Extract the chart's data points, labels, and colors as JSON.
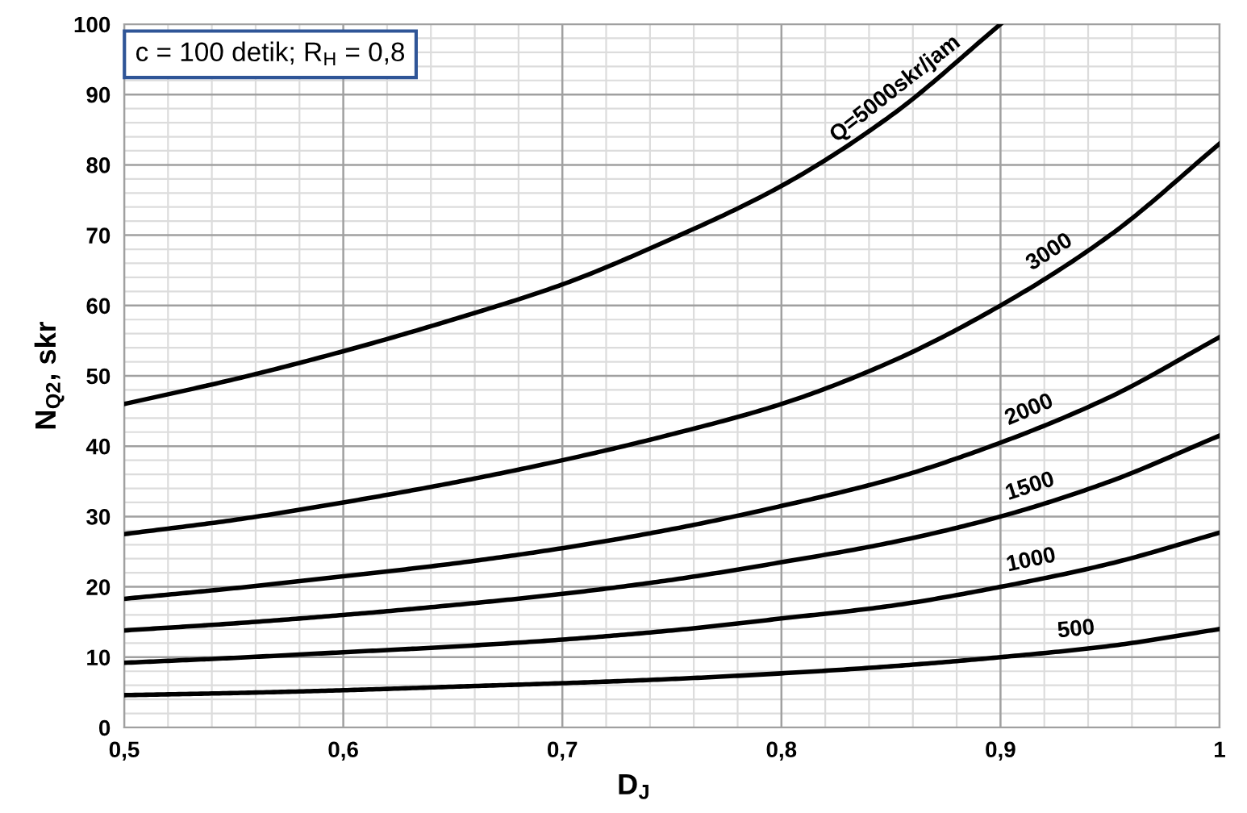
{
  "chart_data": {
    "type": "line",
    "xlabel": "D$_{J}$",
    "ylabel": "N$_{Q2}$, skr",
    "annotations": [
      "c = 100 detik; R$_{H}$ = 0,8"
    ],
    "x": [
      0.5,
      0.55,
      0.6,
      0.65,
      0.7,
      0.75,
      0.8,
      0.85,
      0.9,
      0.95,
      1.0
    ],
    "series": [
      {
        "name": "Q=5000skr/jam",
        "color": "#000000",
        "values": [
          46,
          49.5,
          53.5,
          58,
          63,
          69.5,
          77,
          87,
          100,
          null,
          null
        ]
      },
      {
        "name": "3000",
        "color": "#000000",
        "values": [
          27.5,
          29.5,
          32,
          34.8,
          38,
          41.7,
          46,
          52,
          60,
          70,
          83
        ]
      },
      {
        "name": "2000",
        "color": "#000000",
        "values": [
          18.3,
          19.8,
          21.5,
          23.3,
          25.5,
          28.2,
          31.5,
          35.3,
          40.5,
          47,
          55.5
        ]
      },
      {
        "name": "1500",
        "color": "#000000",
        "values": [
          13.8,
          14.8,
          16,
          17.4,
          19,
          21,
          23.5,
          26.3,
          30,
          35,
          41.5
        ]
      },
      {
        "name": "1000",
        "color": "#000000",
        "values": [
          9.2,
          9.9,
          10.7,
          11.5,
          12.5,
          13.8,
          15.5,
          17.3,
          20,
          23.3,
          27.7
        ]
      },
      {
        "name": "500",
        "color": "#000000",
        "values": [
          4.6,
          4.9,
          5.3,
          5.8,
          6.3,
          6.9,
          7.7,
          8.7,
          10,
          11.6,
          14
        ]
      }
    ],
    "xlim": [
      0.5,
      1.0
    ],
    "ylim": [
      0,
      100
    ],
    "xticks": [
      {
        "value": 0.5,
        "label": "0,5"
      },
      {
        "value": 0.6,
        "label": "0,6"
      },
      {
        "value": 0.7,
        "label": "0,7"
      },
      {
        "value": 0.8,
        "label": "0,8"
      },
      {
        "value": 0.9,
        "label": "0,9"
      },
      {
        "value": 1.0,
        "label": "1"
      }
    ],
    "yticks": [
      0,
      10,
      20,
      30,
      40,
      50,
      60,
      70,
      80,
      90,
      100
    ],
    "grid": true,
    "legend": false,
    "marker": "none",
    "line_style": "solid"
  }
}
